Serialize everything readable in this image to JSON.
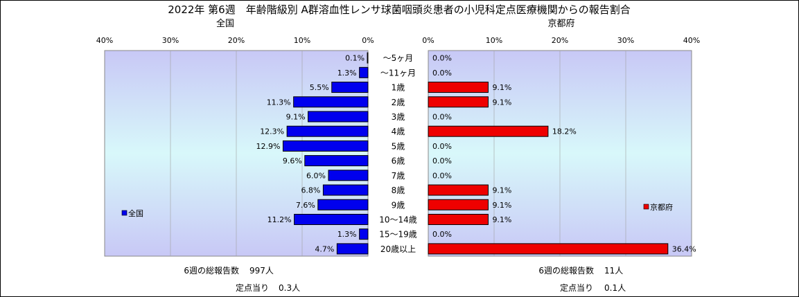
{
  "title": "2022年 第6週　年齢階級別 A群溶血性レンサ球菌咽頭炎患者の小児科定点医療機関からの報告割合",
  "colors": {
    "left_bar": "#0000ee",
    "right_bar": "#ee0000",
    "plot_gradient_top": "#c8c8f6",
    "plot_gradient_mid": "#d8f8fa",
    "plot_gradient_bottom": "#c8c8f6",
    "grid": "#a0a0a0"
  },
  "chart_data": [
    {
      "type": "bar",
      "orientation": "horizontal",
      "direction": "right-to-left",
      "title": "全国",
      "legend": "全国",
      "legend_position": "left",
      "xlim": [
        0,
        40
      ],
      "ticks": [
        "40%",
        "30%",
        "20%",
        "10%",
        "0%"
      ],
      "tick_values": [
        40,
        30,
        20,
        10,
        0
      ],
      "categories": [
        "～5ヶ月",
        "～11ヶ月",
        "1歳",
        "2歳",
        "3歳",
        "4歳",
        "5歳",
        "6歳",
        "7歳",
        "8歳",
        "9歳",
        "10～14歳",
        "15～19歳",
        "20歳以上"
      ],
      "values": [
        0.1,
        1.3,
        5.5,
        11.3,
        9.1,
        12.3,
        12.9,
        9.6,
        6.0,
        6.8,
        7.6,
        11.2,
        1.3,
        4.7
      ],
      "labels": [
        "0.1%",
        "1.3%",
        "5.5%",
        "11.3%",
        "9.1%",
        "12.3%",
        "12.9%",
        "9.6%",
        "6.0%",
        "6.8%",
        "7.6%",
        "11.2%",
        "1.3%",
        "4.7%"
      ],
      "grid": true
    },
    {
      "type": "bar",
      "orientation": "horizontal",
      "direction": "left-to-right",
      "title": "京都府",
      "legend": "京都府",
      "legend_position": "right",
      "xlim": [
        0,
        40
      ],
      "ticks": [
        "0%",
        "10%",
        "20%",
        "30%",
        "40%"
      ],
      "tick_values": [
        0,
        10,
        20,
        30,
        40
      ],
      "categories": [
        "～5ヶ月",
        "～11ヶ月",
        "1歳",
        "2歳",
        "3歳",
        "4歳",
        "5歳",
        "6歳",
        "7歳",
        "8歳",
        "9歳",
        "10～14歳",
        "15～19歳",
        "20歳以上"
      ],
      "values": [
        0.0,
        0.0,
        9.1,
        9.1,
        0.0,
        18.2,
        0.0,
        0.0,
        0.0,
        9.1,
        9.1,
        9.1,
        0.0,
        36.4
      ],
      "labels": [
        "0.0%",
        "0.0%",
        "9.1%",
        "9.1%",
        "0.0%",
        "18.2%",
        "0.0%",
        "0.0%",
        "0.0%",
        "9.1%",
        "9.1%",
        "9.1%",
        "0.0%",
        "36.4%"
      ],
      "grid": true
    }
  ],
  "footer": {
    "left": {
      "total_label": "6週の総報告数",
      "total_value": "997人",
      "per_label": "定点当り",
      "per_value": "0.3人"
    },
    "right": {
      "total_label": "6週の総報告数",
      "total_value": "11人",
      "per_label": "定点当り",
      "per_value": "0.1人"
    }
  }
}
